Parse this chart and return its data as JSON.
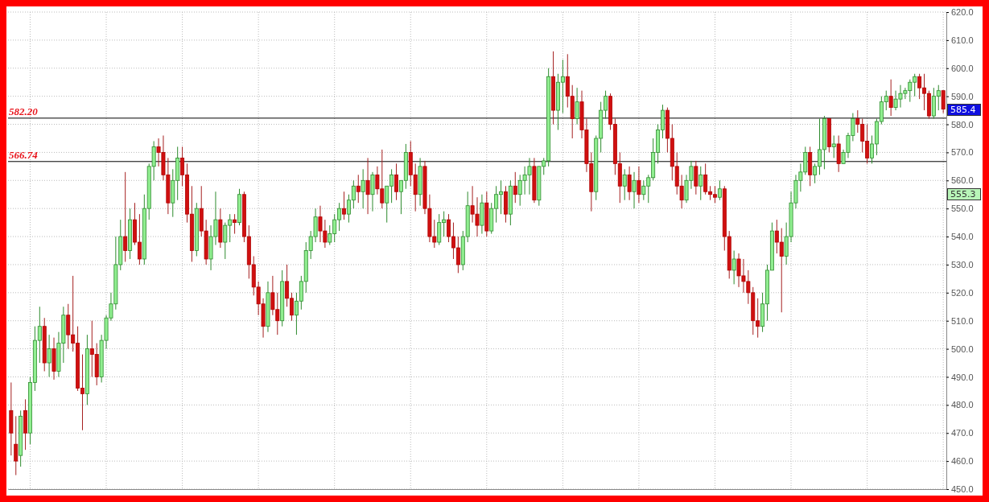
{
  "chart_data": {
    "type": "candlestick",
    "categories": [
      null,
      null,
      null,
      null,
      null,
      null,
      null,
      null,
      null,
      null,
      null,
      null,
      null,
      null,
      null,
      null,
      null,
      null,
      null,
      null,
      null,
      null,
      null,
      null,
      null,
      null,
      null,
      null,
      null,
      null,
      null,
      null,
      null,
      null,
      null,
      null,
      null,
      null,
      null,
      null,
      null,
      null,
      null,
      null,
      null,
      null,
      null,
      null,
      null,
      null,
      null,
      null,
      null,
      null,
      null,
      null,
      null,
      null,
      null,
      null,
      null,
      null,
      null,
      null,
      null,
      null,
      null,
      null,
      null,
      null,
      null,
      null,
      null,
      null,
      null,
      null,
      null,
      null,
      null,
      null,
      null,
      null,
      null,
      null,
      null,
      null,
      null,
      null,
      null,
      null,
      null,
      null,
      null,
      null,
      null,
      null,
      null,
      null,
      null,
      null,
      null,
      null,
      null,
      null,
      null,
      null,
      null,
      null,
      null,
      null,
      null,
      null,
      null,
      null,
      null,
      null,
      null,
      null,
      null,
      null,
      null,
      null,
      null,
      null,
      null,
      null,
      null,
      null,
      null,
      null,
      null,
      null,
      null,
      null,
      null,
      null,
      null,
      null,
      null,
      null,
      null,
      null,
      null,
      null,
      null,
      null,
      null,
      null,
      null,
      null,
      null,
      null,
      null,
      null,
      null,
      null,
      null,
      null,
      null,
      null,
      null,
      null,
      null,
      null,
      null,
      null,
      null,
      null,
      null,
      null,
      null,
      null,
      null,
      null,
      null,
      null,
      null,
      null,
      null,
      null,
      null,
      null,
      null,
      null,
      null,
      null,
      null,
      null,
      null,
      null,
      null,
      null,
      null,
      null,
      null,
      null,
      null
    ],
    "ohlc": [
      [
        478,
        488,
        462,
        470
      ],
      [
        466,
        476,
        455,
        460
      ],
      [
        462,
        478,
        458,
        476
      ],
      [
        478,
        482,
        464,
        470
      ],
      [
        470,
        490,
        466,
        488
      ],
      [
        488,
        508,
        485,
        503
      ],
      [
        503,
        515,
        495,
        508
      ],
      [
        508,
        511,
        492,
        495
      ],
      [
        495,
        505,
        490,
        500
      ],
      [
        500,
        504,
        489,
        492
      ],
      [
        492,
        506,
        490,
        502
      ],
      [
        502,
        515,
        495,
        512
      ],
      [
        512,
        516,
        500,
        505
      ],
      [
        505,
        526,
        499,
        502
      ],
      [
        502,
        508,
        485,
        486
      ],
      [
        486,
        498,
        471,
        484
      ],
      [
        484,
        505,
        480,
        500
      ],
      [
        500,
        510,
        490,
        498
      ],
      [
        498,
        502,
        487,
        490
      ],
      [
        490,
        505,
        488,
        503
      ],
      [
        503,
        512,
        500,
        511
      ],
      [
        511,
        520,
        510,
        516
      ],
      [
        516,
        540,
        514,
        530
      ],
      [
        530,
        546,
        528,
        540
      ],
      [
        540,
        563,
        531,
        535
      ],
      [
        535,
        550,
        532,
        546
      ],
      [
        546,
        552,
        537,
        538
      ],
      [
        538,
        548,
        530,
        532
      ],
      [
        532,
        555,
        530,
        550
      ],
      [
        550,
        566,
        546,
        565
      ],
      [
        565,
        574,
        560,
        572
      ],
      [
        572,
        575,
        565,
        570
      ],
      [
        570,
        576,
        560,
        562
      ],
      [
        562,
        568,
        548,
        552
      ],
      [
        552,
        564,
        547,
        560
      ],
      [
        560,
        572,
        553,
        568
      ],
      [
        568,
        572,
        558,
        562
      ],
      [
        562,
        566,
        545,
        548
      ],
      [
        548,
        558,
        531,
        535
      ],
      [
        535,
        552,
        533,
        550
      ],
      [
        550,
        558,
        540,
        542
      ],
      [
        542,
        546,
        530,
        532
      ],
      [
        532,
        544,
        528,
        540
      ],
      [
        540,
        556,
        537,
        546
      ],
      [
        546,
        550,
        536,
        538
      ],
      [
        538,
        545,
        532,
        544
      ],
      [
        544,
        548,
        538,
        546
      ],
      [
        546,
        548,
        541,
        545
      ],
      [
        545,
        557,
        544,
        555
      ],
      [
        555,
        556,
        538,
        540
      ],
      [
        540,
        544,
        525,
        530
      ],
      [
        530,
        533,
        519,
        522
      ],
      [
        522,
        524,
        512,
        516
      ],
      [
        516,
        518,
        504,
        508
      ],
      [
        508,
        524,
        506,
        520
      ],
      [
        520,
        526,
        512,
        514
      ],
      [
        514,
        520,
        505,
        510
      ],
      [
        510,
        528,
        508,
        524
      ],
      [
        524,
        530,
        515,
        518
      ],
      [
        518,
        520,
        510,
        512
      ],
      [
        512,
        520,
        505,
        517
      ],
      [
        517,
        526,
        514,
        524
      ],
      [
        524,
        538,
        520,
        535
      ],
      [
        535,
        542,
        532,
        540
      ],
      [
        540,
        550,
        538,
        547
      ],
      [
        547,
        551,
        538,
        542
      ],
      [
        542,
        546,
        536,
        538
      ],
      [
        538,
        544,
        537,
        541
      ],
      [
        541,
        548,
        538,
        546
      ],
      [
        546,
        552,
        542,
        550
      ],
      [
        550,
        556,
        546,
        548
      ],
      [
        548,
        555,
        545,
        553
      ],
      [
        553,
        560,
        550,
        558
      ],
      [
        558,
        562,
        552,
        556
      ],
      [
        556,
        564,
        550,
        560
      ],
      [
        560,
        568,
        548,
        555
      ],
      [
        555,
        563,
        549,
        562
      ],
      [
        562,
        565,
        555,
        557
      ],
      [
        557,
        571,
        550,
        552
      ],
      [
        552,
        558,
        545,
        558
      ],
      [
        558,
        564,
        552,
        562
      ],
      [
        562,
        566,
        553,
        556
      ],
      [
        556,
        560,
        548,
        560
      ],
      [
        560,
        573,
        557,
        570
      ],
      [
        570,
        574,
        558,
        562
      ],
      [
        562,
        566,
        549,
        555
      ],
      [
        555,
        568,
        551,
        565
      ],
      [
        565,
        567,
        548,
        550
      ],
      [
        550,
        555,
        538,
        540
      ],
      [
        540,
        546,
        536,
        538
      ],
      [
        538,
        548,
        537,
        545
      ],
      [
        545,
        549,
        540,
        546
      ],
      [
        546,
        548,
        538,
        540
      ],
      [
        540,
        545,
        532,
        536
      ],
      [
        536,
        540,
        527,
        530
      ],
      [
        530,
        542,
        528,
        540
      ],
      [
        540,
        556,
        538,
        551
      ],
      [
        551,
        558,
        545,
        548
      ],
      [
        548,
        554,
        540,
        544
      ],
      [
        544,
        555,
        541,
        552
      ],
      [
        552,
        556,
        540,
        542
      ],
      [
        542,
        552,
        541,
        550
      ],
      [
        550,
        558,
        545,
        555
      ],
      [
        555,
        560,
        548,
        556
      ],
      [
        556,
        558,
        545,
        548
      ],
      [
        548,
        560,
        544,
        558
      ],
      [
        558,
        563,
        552,
        555
      ],
      [
        555,
        562,
        551,
        560
      ],
      [
        560,
        565,
        555,
        562
      ],
      [
        562,
        568,
        555,
        565
      ],
      [
        565,
        568,
        552,
        553
      ],
      [
        553,
        565,
        551,
        565
      ],
      [
        565,
        568,
        562,
        567
      ],
      [
        567,
        600,
        565,
        597
      ],
      [
        597,
        606,
        580,
        585
      ],
      [
        585,
        598,
        578,
        595
      ],
      [
        595,
        603,
        584,
        597
      ],
      [
        597,
        605,
        586,
        590
      ],
      [
        590,
        594,
        575,
        582
      ],
      [
        582,
        593,
        580,
        588
      ],
      [
        588,
        592,
        575,
        578
      ],
      [
        578,
        582,
        563,
        566
      ],
      [
        566,
        570,
        549,
        556
      ],
      [
        556,
        576,
        553,
        575
      ],
      [
        575,
        588,
        570,
        585
      ],
      [
        585,
        592,
        582,
        590
      ],
      [
        590,
        591,
        578,
        580
      ],
      [
        580,
        582,
        562,
        566
      ],
      [
        566,
        570,
        552,
        558
      ],
      [
        558,
        564,
        553,
        562
      ],
      [
        562,
        565,
        553,
        556
      ],
      [
        556,
        563,
        550,
        560
      ],
      [
        560,
        565,
        552,
        555
      ],
      [
        555,
        560,
        553,
        558
      ],
      [
        558,
        562,
        552,
        561
      ],
      [
        561,
        575,
        560,
        570
      ],
      [
        570,
        580,
        566,
        578
      ],
      [
        578,
        587,
        575,
        585
      ],
      [
        585,
        586,
        570,
        575
      ],
      [
        575,
        580,
        560,
        565
      ],
      [
        565,
        570,
        555,
        558
      ],
      [
        558,
        562,
        550,
        553
      ],
      [
        553,
        562,
        552,
        560
      ],
      [
        560,
        567,
        557,
        565
      ],
      [
        565,
        567,
        555,
        558
      ],
      [
        558,
        565,
        553,
        562
      ],
      [
        562,
        566,
        555,
        556
      ],
      [
        556,
        558,
        553,
        555
      ],
      [
        555,
        558,
        552,
        554
      ],
      [
        554,
        560,
        553,
        557
      ],
      [
        557,
        558,
        535,
        540
      ],
      [
        540,
        542,
        525,
        528
      ],
      [
        528,
        535,
        523,
        532
      ],
      [
        532,
        534,
        522,
        526
      ],
      [
        526,
        532,
        520,
        524
      ],
      [
        524,
        528,
        516,
        520
      ],
      [
        520,
        522,
        505,
        510
      ],
      [
        510,
        518,
        504,
        508
      ],
      [
        508,
        520,
        506,
        516
      ],
      [
        516,
        530,
        510,
        528
      ],
      [
        528,
        545,
        528,
        542
      ],
      [
        542,
        546,
        534,
        538
      ],
      [
        538,
        543,
        513,
        533
      ],
      [
        533,
        545,
        530,
        540
      ],
      [
        540,
        556,
        538,
        552
      ],
      [
        552,
        562,
        550,
        560
      ],
      [
        560,
        566,
        556,
        563
      ],
      [
        563,
        572,
        562,
        570
      ],
      [
        570,
        572,
        558,
        562
      ],
      [
        562,
        566,
        559,
        565
      ],
      [
        565,
        582,
        562,
        571
      ],
      [
        571,
        583,
        564,
        582
      ],
      [
        582,
        582,
        570,
        572
      ],
      [
        572,
        576,
        568,
        573
      ],
      [
        573,
        576,
        563,
        566
      ],
      [
        566,
        571,
        566,
        570
      ],
      [
        570,
        577,
        568,
        576
      ],
      [
        576,
        584,
        574,
        582
      ],
      [
        582,
        585,
        577,
        580
      ],
      [
        580,
        582,
        570,
        574
      ],
      [
        574,
        580,
        566,
        568
      ],
      [
        568,
        576,
        566,
        573
      ],
      [
        573,
        582,
        569,
        581
      ],
      [
        581,
        590,
        580,
        588
      ],
      [
        588,
        592,
        585,
        590
      ],
      [
        590,
        596,
        583,
        586
      ],
      [
        586,
        592,
        585,
        589
      ],
      [
        589,
        594,
        586,
        591
      ],
      [
        591,
        593,
        589,
        592
      ],
      [
        592,
        596,
        588,
        595
      ],
      [
        595,
        598,
        590,
        597
      ],
      [
        597,
        598,
        589,
        593
      ],
      [
        593,
        598,
        585,
        591
      ],
      [
        591,
        592,
        582,
        583
      ],
      [
        583,
        593,
        582,
        590
      ],
      [
        590,
        594,
        585,
        592
      ],
      [
        592,
        592,
        584,
        585.4
      ]
    ],
    "ylim": [
      450,
      620
    ],
    "yticks": [
      {
        "value": 450,
        "label": "450.0"
      },
      {
        "value": 460,
        "label": "460.0"
      },
      {
        "value": 470,
        "label": "470.0"
      },
      {
        "value": 480,
        "label": "480.0"
      },
      {
        "value": 490,
        "label": "490.0"
      },
      {
        "value": 500,
        "label": "500.0"
      },
      {
        "value": 510,
        "label": "510.0"
      },
      {
        "value": 520,
        "label": "520.0"
      },
      {
        "value": 530,
        "label": "530.0"
      },
      {
        "value": 540,
        "label": "540.0"
      },
      {
        "value": 550,
        "label": "550.0"
      },
      {
        "value": 560,
        "label": "560.0"
      },
      {
        "value": 570,
        "label": "570.0"
      },
      {
        "value": 580,
        "label": "580.0"
      },
      {
        "value": 590,
        "label": "590.0"
      },
      {
        "value": 600,
        "label": "600.0"
      },
      {
        "value": 610,
        "label": "610.0"
      },
      {
        "value": 620,
        "label": "620.0"
      }
    ],
    "tick_labels": "y",
    "grid": true,
    "ref_lines": [
      {
        "axis": "y",
        "value": 582.2,
        "label": "582.20",
        "color": "#000000"
      },
      {
        "axis": "y",
        "value": 566.74,
        "label": "566.74",
        "color": "#000000"
      }
    ],
    "annotations": [
      {
        "text": "585.4",
        "y": 585.4
      },
      {
        "text": "555.3",
        "y": 555.3
      }
    ]
  }
}
